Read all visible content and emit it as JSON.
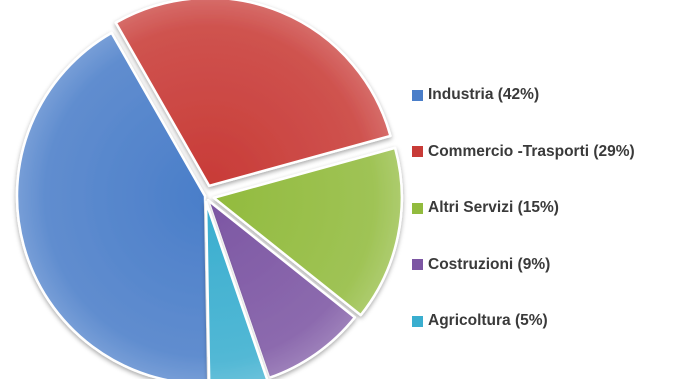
{
  "chart_data": {
    "type": "pie",
    "title": "",
    "slices": [
      {
        "label": "Industria (42%)",
        "name": "Industria",
        "value": 42,
        "color": "#4a7ec9"
      },
      {
        "label": "Commercio -Trasporti (29%)",
        "name": "Commercio -Trasporti",
        "value": 29,
        "color": "#c83b37"
      },
      {
        "label": "Altri Servizi (15%)",
        "name": "Altri Servizi",
        "value": 15,
        "color": "#92bb3e"
      },
      {
        "label": "Costruzioni (9%)",
        "name": "Costruzioni",
        "value": 9,
        "color": "#7c56a3"
      },
      {
        "label": "Agricoltura (5%)",
        "name": "Agricoltura",
        "value": 5,
        "color": "#3aaecf"
      }
    ],
    "legend_position": "right"
  }
}
